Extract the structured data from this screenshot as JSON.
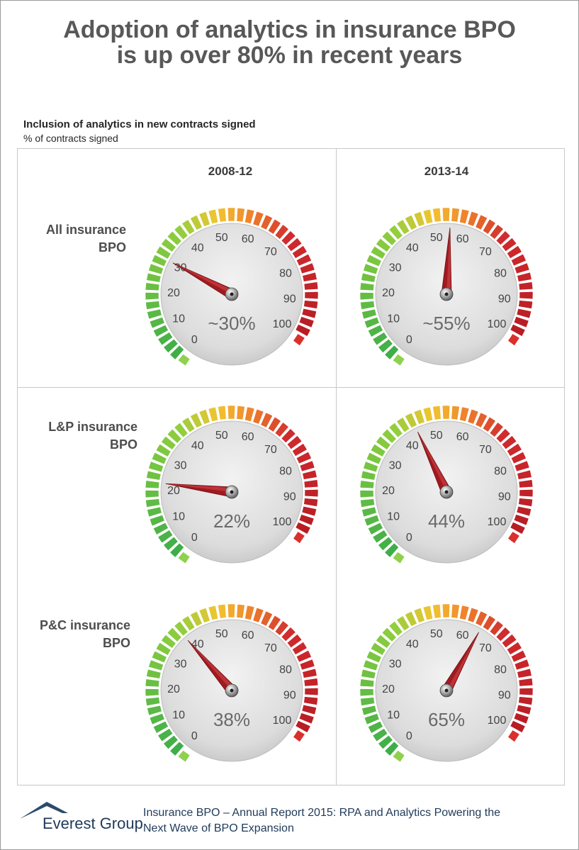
{
  "title_line1": "Adoption of analytics in insurance BPO",
  "title_line2": "is up over 80% in recent years",
  "subtitle": "Inclusion of analytics in new contracts signed",
  "unit": "% of contracts signed",
  "columns": [
    "2008-12",
    "2013-14"
  ],
  "rows": [
    {
      "line1": "All insurance",
      "line2": "BPO"
    },
    {
      "line1": "L&P insurance",
      "line2": "BPO"
    },
    {
      "line1": "P&C insurance",
      "line2": "BPO"
    }
  ],
  "chart_data": {
    "type": "gauge",
    "min": 0,
    "max": 100,
    "tick_labels": [
      "0",
      "10",
      "20",
      "30",
      "40",
      "50",
      "60",
      "70",
      "80",
      "90",
      "100"
    ],
    "categories": [
      "2008-12",
      "2013-14"
    ],
    "series": [
      {
        "name": "All insurance BPO",
        "values": [
          30,
          55
        ],
        "labels": [
          "~30%",
          "~55%"
        ]
      },
      {
        "name": "L&P insurance BPO",
        "values": [
          22,
          44
        ],
        "labels": [
          "22%",
          "44%"
        ]
      },
      {
        "name": "P&C insurance BPO",
        "values": [
          38,
          65
        ],
        "labels": [
          "38%",
          "65%"
        ]
      }
    ],
    "colors": {
      "low": "#4caf50",
      "mid": "#f5b82e",
      "high": "#c62828",
      "needle": "#a01a1f"
    }
  },
  "footer": {
    "logo_text": "Everest Group",
    "line1": "Insurance BPO – Annual Report 2015: RPA and Analytics Powering the",
    "line2": "Next Wave of BPO Expansion"
  }
}
